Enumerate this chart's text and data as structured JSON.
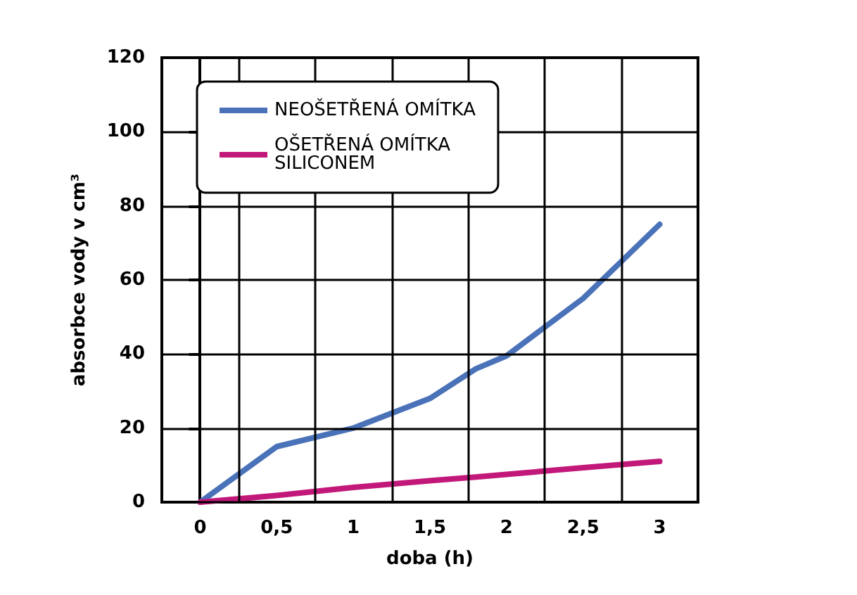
{
  "chart_data": {
    "type": "line",
    "xlabel": "doba (h)",
    "ylabel": "absorbce vody v cm³",
    "x": [
      0,
      0.5,
      1,
      1.5,
      1.8,
      2,
      2.5,
      3
    ],
    "series": [
      {
        "name": "NEOŠETŘENÁ OMÍTKA",
        "color": "#4a72b8",
        "values": [
          0,
          15,
          20,
          28,
          36,
          39.5,
          55,
          75
        ]
      },
      {
        "name": "OŠETŘENÁ OMÍTKA SILICONEM",
        "color": "#c2187a",
        "values": [
          0,
          1.8,
          4,
          5.8,
          6.8,
          7.5,
          9.3,
          11
        ]
      }
    ],
    "xlim": [
      -0.25,
      3.25
    ],
    "xticks": [
      {
        "value": -0.25,
        "label": null
      },
      0,
      {
        "value": 0.25,
        "label": null
      },
      {
        "value": 0.5,
        "label": "0,5"
      },
      {
        "value": 0.75,
        "label": null
      },
      1,
      {
        "value": 1.25,
        "label": null
      },
      {
        "value": 1.5,
        "label": "1,5"
      },
      {
        "value": 1.75,
        "label": null
      },
      2,
      {
        "value": 2.25,
        "label": null
      },
      {
        "value": 2.5,
        "label": "2,5"
      },
      {
        "value": 2.75,
        "label": null
      },
      3,
      {
        "value": 3.25,
        "label": null
      }
    ],
    "ylim": [
      0,
      120
    ],
    "yticks": [
      0,
      20,
      40,
      60,
      80,
      100,
      120
    ],
    "grid": true,
    "legend": "top left",
    "marker": "none",
    "line_style": "solid"
  }
}
